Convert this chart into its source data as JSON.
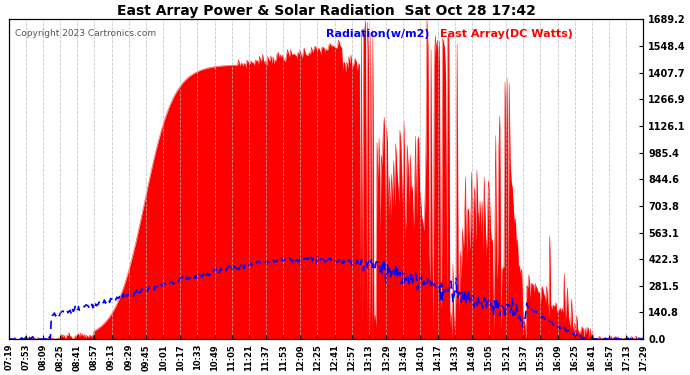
{
  "title": "East Array Power & Solar Radiation  Sat Oct 28 17:42",
  "copyright": "Copyright 2023 Cartronics.com",
  "legend_radiation": "Radiation(w/m2)",
  "legend_east": "East Array(DC Watts)",
  "yticks": [
    0.0,
    140.8,
    281.5,
    422.3,
    563.1,
    703.8,
    844.6,
    985.4,
    1126.1,
    1266.9,
    1407.7,
    1548.4,
    1689.2
  ],
  "ymax": 1689.2,
  "ymin": 0.0,
  "background_color": "#ffffff",
  "grid_color": "#bbbbbb",
  "fill_color": "#ff0000",
  "radiation_color": "#0000ff",
  "east_color": "#ff0000",
  "title_fontsize": 10,
  "xtick_labels": [
    "07:19",
    "07:53",
    "08:09",
    "08:25",
    "08:41",
    "08:57",
    "09:13",
    "09:29",
    "09:45",
    "10:01",
    "10:17",
    "10:33",
    "10:49",
    "11:05",
    "11:21",
    "11:37",
    "11:53",
    "12:09",
    "12:25",
    "12:41",
    "12:57",
    "13:13",
    "13:29",
    "13:45",
    "14:01",
    "14:17",
    "14:33",
    "14:49",
    "15:05",
    "15:21",
    "15:37",
    "15:53",
    "16:09",
    "16:25",
    "16:41",
    "16:57",
    "17:13",
    "17:29"
  ]
}
